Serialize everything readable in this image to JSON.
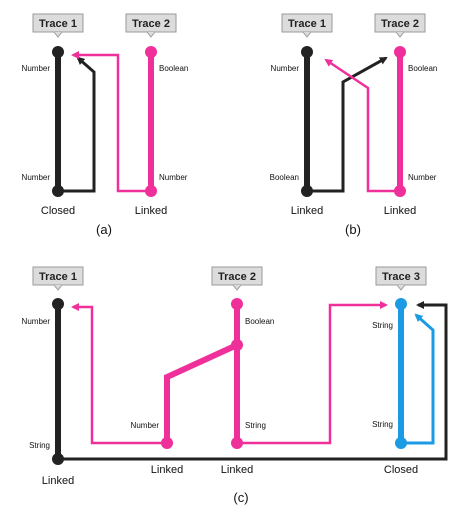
{
  "colors": {
    "black_trace": "#222222",
    "pink_trace": "#f0309a",
    "blue_trace": "#1a9be3",
    "tag_fill": "#dcdcdc",
    "tag_border": "#9a9a9a"
  },
  "panels": {
    "a": {
      "caption": "(a)",
      "trace1": {
        "label": "Trace 1",
        "top_type": "Number",
        "bottom_type": "Number",
        "state": "Closed"
      },
      "trace2": {
        "label": "Trace 2",
        "top_type": "Boolean",
        "bottom_type": "Number",
        "state": "Linked"
      }
    },
    "b": {
      "caption": "(b)",
      "trace1": {
        "label": "Trace 1",
        "top_type": "Number",
        "bottom_type": "Boolean",
        "state": "Linked"
      },
      "trace2": {
        "label": "Trace 2",
        "top_type": "Boolean",
        "bottom_type": "Number",
        "state": "Linked"
      }
    },
    "c": {
      "caption": "(c)",
      "trace1": {
        "label": "Trace 1",
        "top_type": "Number",
        "bottom_type": "String",
        "state": "Linked"
      },
      "trace2": {
        "label": "Trace 2",
        "top_type": "Boolean",
        "mid_type": "Number",
        "bottom_type": "String",
        "state_left": "Linked",
        "state_right": "Linked"
      },
      "trace3": {
        "label": "Trace 3",
        "top_type": "String",
        "bottom_type": "String",
        "state": "Closed"
      }
    }
  }
}
